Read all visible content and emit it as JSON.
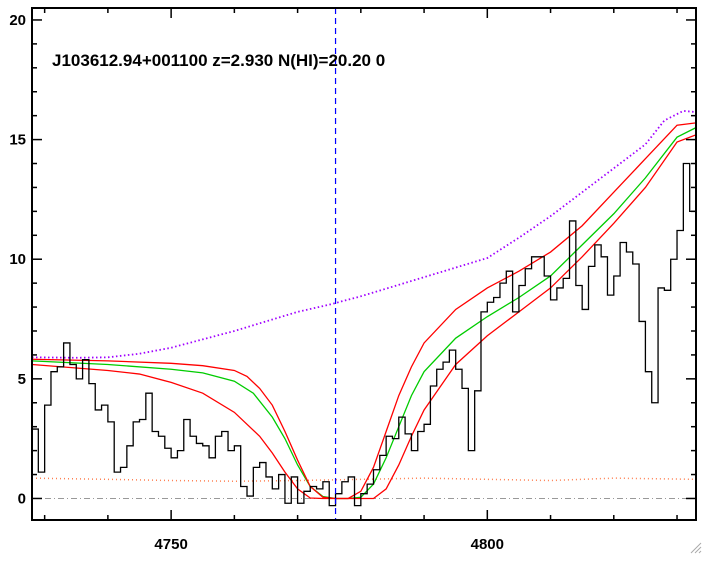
{
  "chart_data": {
    "type": "line",
    "title": "J103612.94+001100 z=2.930 N(HI)=20.20 0",
    "xlabel": "",
    "ylabel": "",
    "xlim": [
      4728,
      4833
    ],
    "ylim": [
      -0.9,
      20.5
    ],
    "x_ticks": [
      4750,
      4800
    ],
    "x_tick_labels": [
      "4750",
      "4800"
    ],
    "y_ticks": [
      0,
      5,
      10,
      15,
      20
    ],
    "y_tick_labels": [
      "0",
      "5",
      "10",
      "15",
      "20"
    ],
    "grid": false,
    "legend": "none",
    "marker_line_x": 4776,
    "zero_line_y": 0,
    "flux_steps": {
      "x": [
        4728,
        4729,
        4730,
        4731,
        4732,
        4733,
        4734,
        4735,
        4736,
        4737,
        4738,
        4739,
        4740,
        4741,
        4742,
        4743,
        4744,
        4745,
        4746,
        4747,
        4748,
        4749,
        4750,
        4751,
        4752,
        4753,
        4754,
        4755,
        4756,
        4757,
        4758,
        4759,
        4760,
        4761,
        4762,
        4763,
        4764,
        4765,
        4766,
        4767,
        4768,
        4769,
        4770,
        4771,
        4772,
        4773,
        4774,
        4775,
        4776,
        4777,
        4778,
        4779,
        4780,
        4781,
        4782,
        4783,
        4784,
        4785,
        4786,
        4787,
        4788,
        4789,
        4790,
        4791,
        4792,
        4793,
        4794,
        4795,
        4796,
        4797,
        4798,
        4799,
        4800,
        4801,
        4802,
        4803,
        4804,
        4805,
        4806,
        4807,
        4808,
        4809,
        4810,
        4811,
        4812,
        4813,
        4814,
        4815,
        4816,
        4817,
        4818,
        4819,
        4820,
        4821,
        4822,
        4823,
        4824,
        4825,
        4826,
        4827,
        4828,
        4829,
        4830,
        4831,
        4832,
        4833
      ],
      "y": [
        2.9,
        1.1,
        3.9,
        5.3,
        5.5,
        6.5,
        5.6,
        5.0,
        5.8,
        4.8,
        3.7,
        3.9,
        3.2,
        1.1,
        1.3,
        2.2,
        3.2,
        3.3,
        4.4,
        2.8,
        2.6,
        2.1,
        1.7,
        2.0,
        3.3,
        2.6,
        2.3,
        2.2,
        1.7,
        2.6,
        2.8,
        2.0,
        2.2,
        0.5,
        0.1,
        1.3,
        1.5,
        0.9,
        0.4,
        1.0,
        -0.2,
        0.9,
        -0.2,
        0.3,
        0.5,
        0.4,
        0.7,
        -0.3,
        0.2,
        0.7,
        0.9,
        -0.3,
        0.2,
        0.6,
        1.2,
        1.8,
        2.6,
        2.5,
        3.4,
        2.7,
        2.0,
        2.8,
        3.1,
        4.7,
        5.4,
        5.7,
        6.2,
        5.4,
        4.6,
        2.0,
        4.5,
        7.8,
        8.2,
        8.4,
        9.0,
        9.5,
        7.8,
        8.9,
        9.6,
        10.1,
        10.1,
        9.3,
        8.3,
        8.8,
        9.2,
        11.6,
        8.9,
        7.9,
        9.7,
        10.6,
        10.1,
        8.5,
        9.3,
        10.7,
        10.3,
        9.8,
        7.4,
        5.3,
        4.0,
        8.8,
        8.7,
        10.0,
        11.2,
        14.0,
        12.0,
        9.0
      ]
    },
    "continuum_dotted": {
      "x": [
        4728,
        4735,
        4740,
        4745,
        4750,
        4755,
        4760,
        4765,
        4770,
        4775,
        4780,
        4785,
        4790,
        4795,
        4800,
        4805,
        4810,
        4815,
        4820,
        4825,
        4828,
        4831,
        4833
      ],
      "y": [
        5.9,
        5.88,
        5.9,
        6.05,
        6.3,
        6.65,
        7.0,
        7.4,
        7.8,
        8.1,
        8.45,
        8.85,
        9.25,
        9.65,
        10.05,
        10.9,
        11.8,
        12.8,
        13.8,
        14.8,
        15.8,
        16.2,
        16.15
      ]
    },
    "noise_dotted": {
      "x": [
        4728,
        4740,
        4750,
        4760,
        4770,
        4780,
        4790,
        4800,
        4810,
        4820,
        4833
      ],
      "y": [
        0.85,
        0.8,
        0.75,
        0.72,
        0.75,
        0.8,
        0.85,
        0.8,
        0.75,
        0.85,
        0.8
      ]
    },
    "series": [
      {
        "color": "#00cc00",
        "x": [
          4728,
          4740,
          4750,
          4755,
          4760,
          4763,
          4766,
          4768,
          4770,
          4772,
          4774,
          4776,
          4778,
          4780,
          4782,
          4784,
          4786,
          4788,
          4790,
          4795,
          4800,
          4805,
          4810,
          4815,
          4820,
          4825,
          4830,
          4833
        ],
        "y": [
          5.75,
          5.6,
          5.4,
          5.25,
          4.9,
          4.4,
          3.4,
          2.5,
          1.4,
          0.5,
          0.08,
          0.0,
          0.0,
          0.05,
          0.6,
          1.7,
          3.0,
          4.3,
          5.3,
          6.7,
          7.6,
          8.4,
          9.3,
          10.6,
          11.9,
          13.4,
          15.1,
          15.5
        ]
      },
      {
        "color": "#ff0000",
        "x": [
          4728,
          4740,
          4750,
          4755,
          4760,
          4762,
          4764,
          4766,
          4768,
          4770,
          4772,
          4774,
          4776,
          4778,
          4780,
          4782,
          4784,
          4786,
          4788,
          4790,
          4795,
          4800,
          4805,
          4810,
          4815,
          4820,
          4825,
          4830,
          4833
        ],
        "y": [
          5.82,
          5.75,
          5.65,
          5.55,
          5.35,
          5.1,
          4.6,
          3.9,
          2.8,
          1.6,
          0.5,
          0.05,
          0.0,
          0.0,
          0.3,
          1.3,
          2.8,
          4.3,
          5.5,
          6.5,
          7.9,
          8.8,
          9.5,
          10.3,
          11.4,
          12.8,
          14.2,
          15.6,
          15.7
        ]
      },
      {
        "color": "#ff0000",
        "x": [
          4728,
          4740,
          4745,
          4750,
          4755,
          4760,
          4764,
          4766,
          4768,
          4770,
          4772,
          4774,
          4776,
          4778,
          4780,
          4782,
          4784,
          4786,
          4788,
          4790,
          4795,
          4800,
          4805,
          4810,
          4815,
          4820,
          4825,
          4830,
          4833
        ],
        "y": [
          5.6,
          5.35,
          5.2,
          4.85,
          4.4,
          3.6,
          2.6,
          1.9,
          1.1,
          0.4,
          0.02,
          0.0,
          0.0,
          0.0,
          0.0,
          0.0,
          0.4,
          1.4,
          2.6,
          3.7,
          5.6,
          6.8,
          7.8,
          8.8,
          10.1,
          11.5,
          13.0,
          14.9,
          15.2
        ]
      }
    ],
    "colors": {
      "axes": "#000000",
      "flux": "#000000",
      "continuum": "#a000ff",
      "noise": "#ff7f50",
      "marker_line": "#0000ff",
      "zero_line": "#999999"
    }
  }
}
